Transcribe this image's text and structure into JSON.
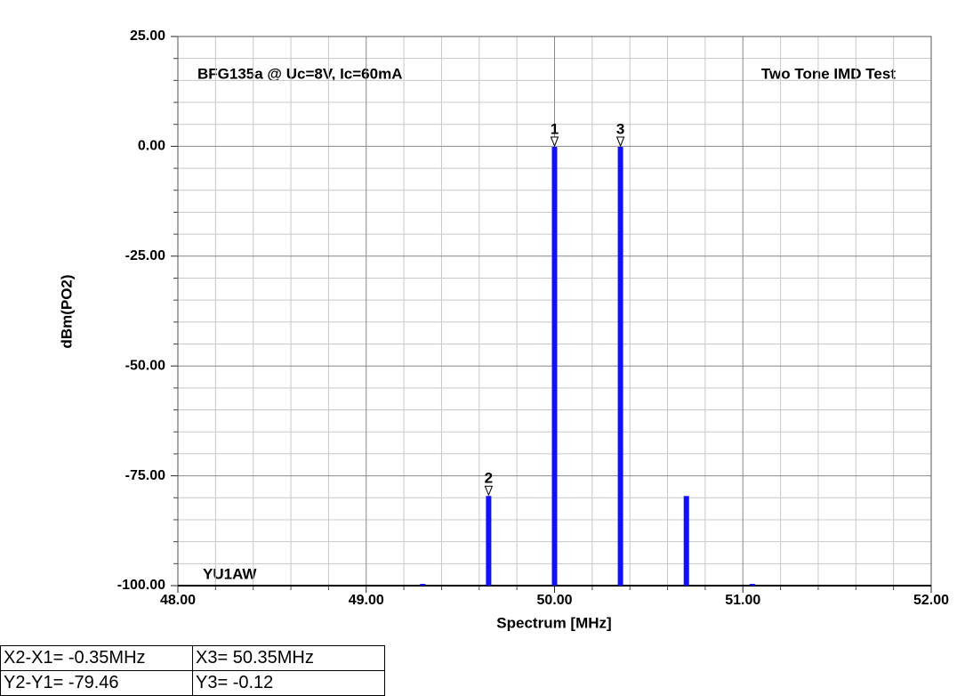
{
  "chart_data": {
    "type": "bar",
    "title": "BFG135a @ Uc=8V, Ic=60mA",
    "subtitle": "Two Tone IMD Test",
    "annotation": "YU1AW",
    "x_label": "Spectrum [MHz]",
    "y_label": "dBm(PO2)",
    "x": [
      49.3,
      49.65,
      50.0,
      50.35,
      50.7,
      51.05
    ],
    "values": [
      -99.6,
      -79.58,
      -0.12,
      -0.12,
      -79.6,
      -99.6
    ],
    "color": "#1010ff",
    "xlim": [
      48,
      52
    ],
    "ylim": [
      -100,
      25
    ],
    "xticks": [
      {
        "value": 48,
        "label": "48.00"
      },
      {
        "value": 49,
        "label": "49.00"
      },
      {
        "value": 50,
        "label": "50.00"
      },
      {
        "value": 51,
        "label": "51.00"
      },
      {
        "value": 52,
        "label": "52.00"
      }
    ],
    "yticks": [
      {
        "value": 25,
        "label": "25.00"
      },
      {
        "value": 0,
        "label": "0.00"
      },
      {
        "value": -25,
        "label": "-25.00"
      },
      {
        "value": -50,
        "label": "-50.00"
      },
      {
        "value": -75,
        "label": "-75.00"
      },
      {
        "value": -100,
        "label": "-100.00"
      }
    ],
    "grid": true,
    "markers": [
      {
        "label": "1",
        "x": 50.0,
        "y": -0.12
      },
      {
        "label": "2",
        "x": 49.65,
        "y": -79.58
      },
      {
        "label": "3",
        "x": 50.35,
        "y": -0.12
      }
    ],
    "readout": [
      [
        "X2-X1= -0.35MHz",
        "Y2-Y1= -79.46"
      ],
      [
        "X3= 50.35MHz",
        "Y3= -0.12"
      ]
    ]
  }
}
